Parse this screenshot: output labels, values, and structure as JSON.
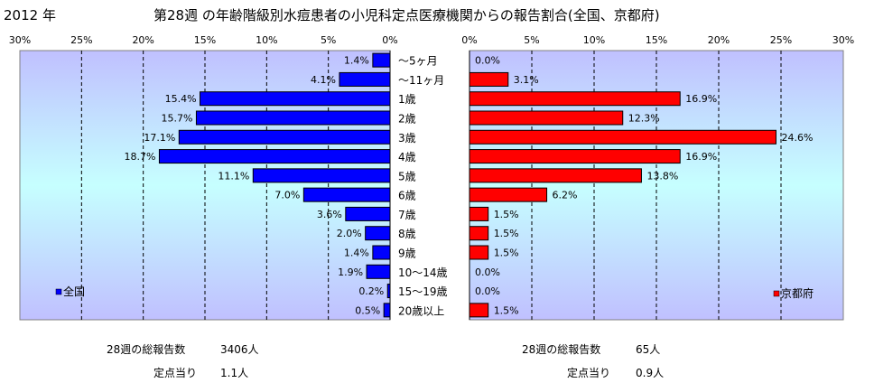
{
  "header": {
    "year": "2012 年",
    "title": "第28週 の年齢階級別水痘患者の小児科定点医療機関からの報告割合(全国、京都府)"
  },
  "chart_data": {
    "type": "bar",
    "orientation": "horizontal-back-to-back",
    "categories": [
      "～5ヶ月",
      "～11ヶ月",
      "1歳",
      "2歳",
      "3歳",
      "4歳",
      "5歳",
      "6歳",
      "7歳",
      "8歳",
      "9歳",
      "10～14歳",
      "15～19歳",
      "20歳以上"
    ],
    "series": [
      {
        "name": "全国",
        "color": "#0000ff",
        "values": [
          1.4,
          4.1,
          15.4,
          15.7,
          17.1,
          18.7,
          11.1,
          7.0,
          3.6,
          2.0,
          1.4,
          1.9,
          0.2,
          0.5
        ],
        "labels": [
          "1.4%",
          "4.1%",
          "15.4%",
          "15.7%",
          "17.1%",
          "18.7%",
          "11.1%",
          "7.0%",
          "3.6%",
          "2.0%",
          "1.4%",
          "1.9%",
          "0.2%",
          "0.5%"
        ]
      },
      {
        "name": "京都府",
        "color": "#ff0000",
        "values": [
          0.0,
          3.1,
          16.9,
          12.3,
          24.6,
          16.9,
          13.8,
          6.2,
          1.5,
          1.5,
          1.5,
          0.0,
          0.0,
          1.5
        ],
        "labels": [
          "0.0%",
          "3.1%",
          "16.9%",
          "12.3%",
          "24.6%",
          "16.9%",
          "13.8%",
          "6.2%",
          "1.5%",
          "1.5%",
          "1.5%",
          "0.0%",
          "0.0%",
          "1.5%"
        ]
      }
    ],
    "xlim": [
      0,
      30
    ],
    "ticks": [
      0,
      5,
      10,
      15,
      20,
      25,
      30
    ],
    "tick_labels_left": [
      "30%",
      "25%",
      "20%",
      "15%",
      "10%",
      "5%",
      "0%"
    ],
    "tick_labels_right": [
      "0%",
      "5%",
      "10%",
      "15%",
      "20%",
      "25%",
      "30%"
    ],
    "grid": true
  },
  "footer": {
    "national": {
      "total_label": "28週の総報告数",
      "total_value": "3406人",
      "per_label": "定点当り",
      "per_value": "1.1人"
    },
    "kyoto": {
      "total_label": "28週の総報告数",
      "total_value": "65人",
      "per_label": "定点当り",
      "per_value": "0.9人"
    }
  }
}
